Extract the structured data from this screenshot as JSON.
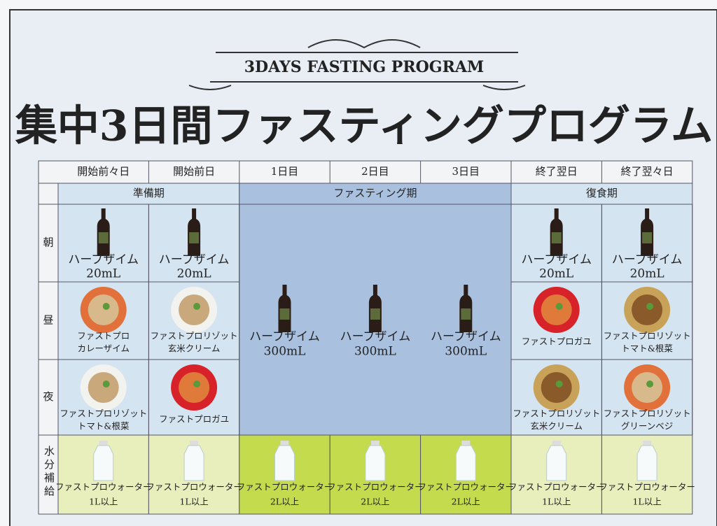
{
  "header": {
    "subtitle": "3DAYS FASTING PROGRAM",
    "title": "集中3日間ファスティングプログラム"
  },
  "table": {
    "days": [
      "開始前々日",
      "開始前日",
      "1日目",
      "2日目",
      "3日目",
      "終了翌日",
      "終了翌々日"
    ],
    "phases": [
      "準備期",
      "ファスティング期",
      "復食期"
    ],
    "meal_rows": [
      {
        "label": "朝",
        "cells": [
          [
            "ハーブザイム",
            "20mL"
          ],
          [
            "ハーブザイム",
            "20mL"
          ],
          [
            "ハーブザイム",
            "20mL"
          ],
          [
            "ハーブザイム",
            "20mL"
          ]
        ]
      },
      {
        "label": "昼",
        "cells": [
          [
            "ファストプロ",
            "カレーザイム"
          ],
          [
            "ファストプロリゾット",
            "玄米クリーム"
          ],
          [
            "ファストプロガユ"
          ],
          [
            "ファストプロリゾット",
            "トマト&根菜"
          ]
        ]
      },
      {
        "label": "夜",
        "cells": [
          [
            "ファストプロリゾット",
            "トマト&根菜"
          ],
          [
            "ファストプロガユ"
          ],
          [
            "ファストプロリゾット",
            "玄米クリーム"
          ],
          [
            "ファストプロリゾット",
            "グリーンベジ"
          ]
        ]
      }
    ],
    "fasting_cells": [
      [
        "ハーブザイム",
        "300mL"
      ],
      [
        "ハーブザイム",
        "300mL"
      ],
      [
        "ハーブザイム",
        "300mL"
      ]
    ],
    "water": {
      "label": "水分補給",
      "cells": [
        [
          "ファストプロウォーター",
          "1L以上"
        ],
        [
          "ファストプロウォーター",
          "1L以上"
        ],
        [
          "ファストプロウォーター",
          "2L以上"
        ],
        [
          "ファストプロウォーター",
          "2L以上"
        ],
        [
          "ファストプロウォーター",
          "2L以上"
        ],
        [
          "ファストプロウォーター",
          "1L以上"
        ],
        [
          "ファストプロウォーター",
          "1L以上"
        ]
      ]
    }
  }
}
